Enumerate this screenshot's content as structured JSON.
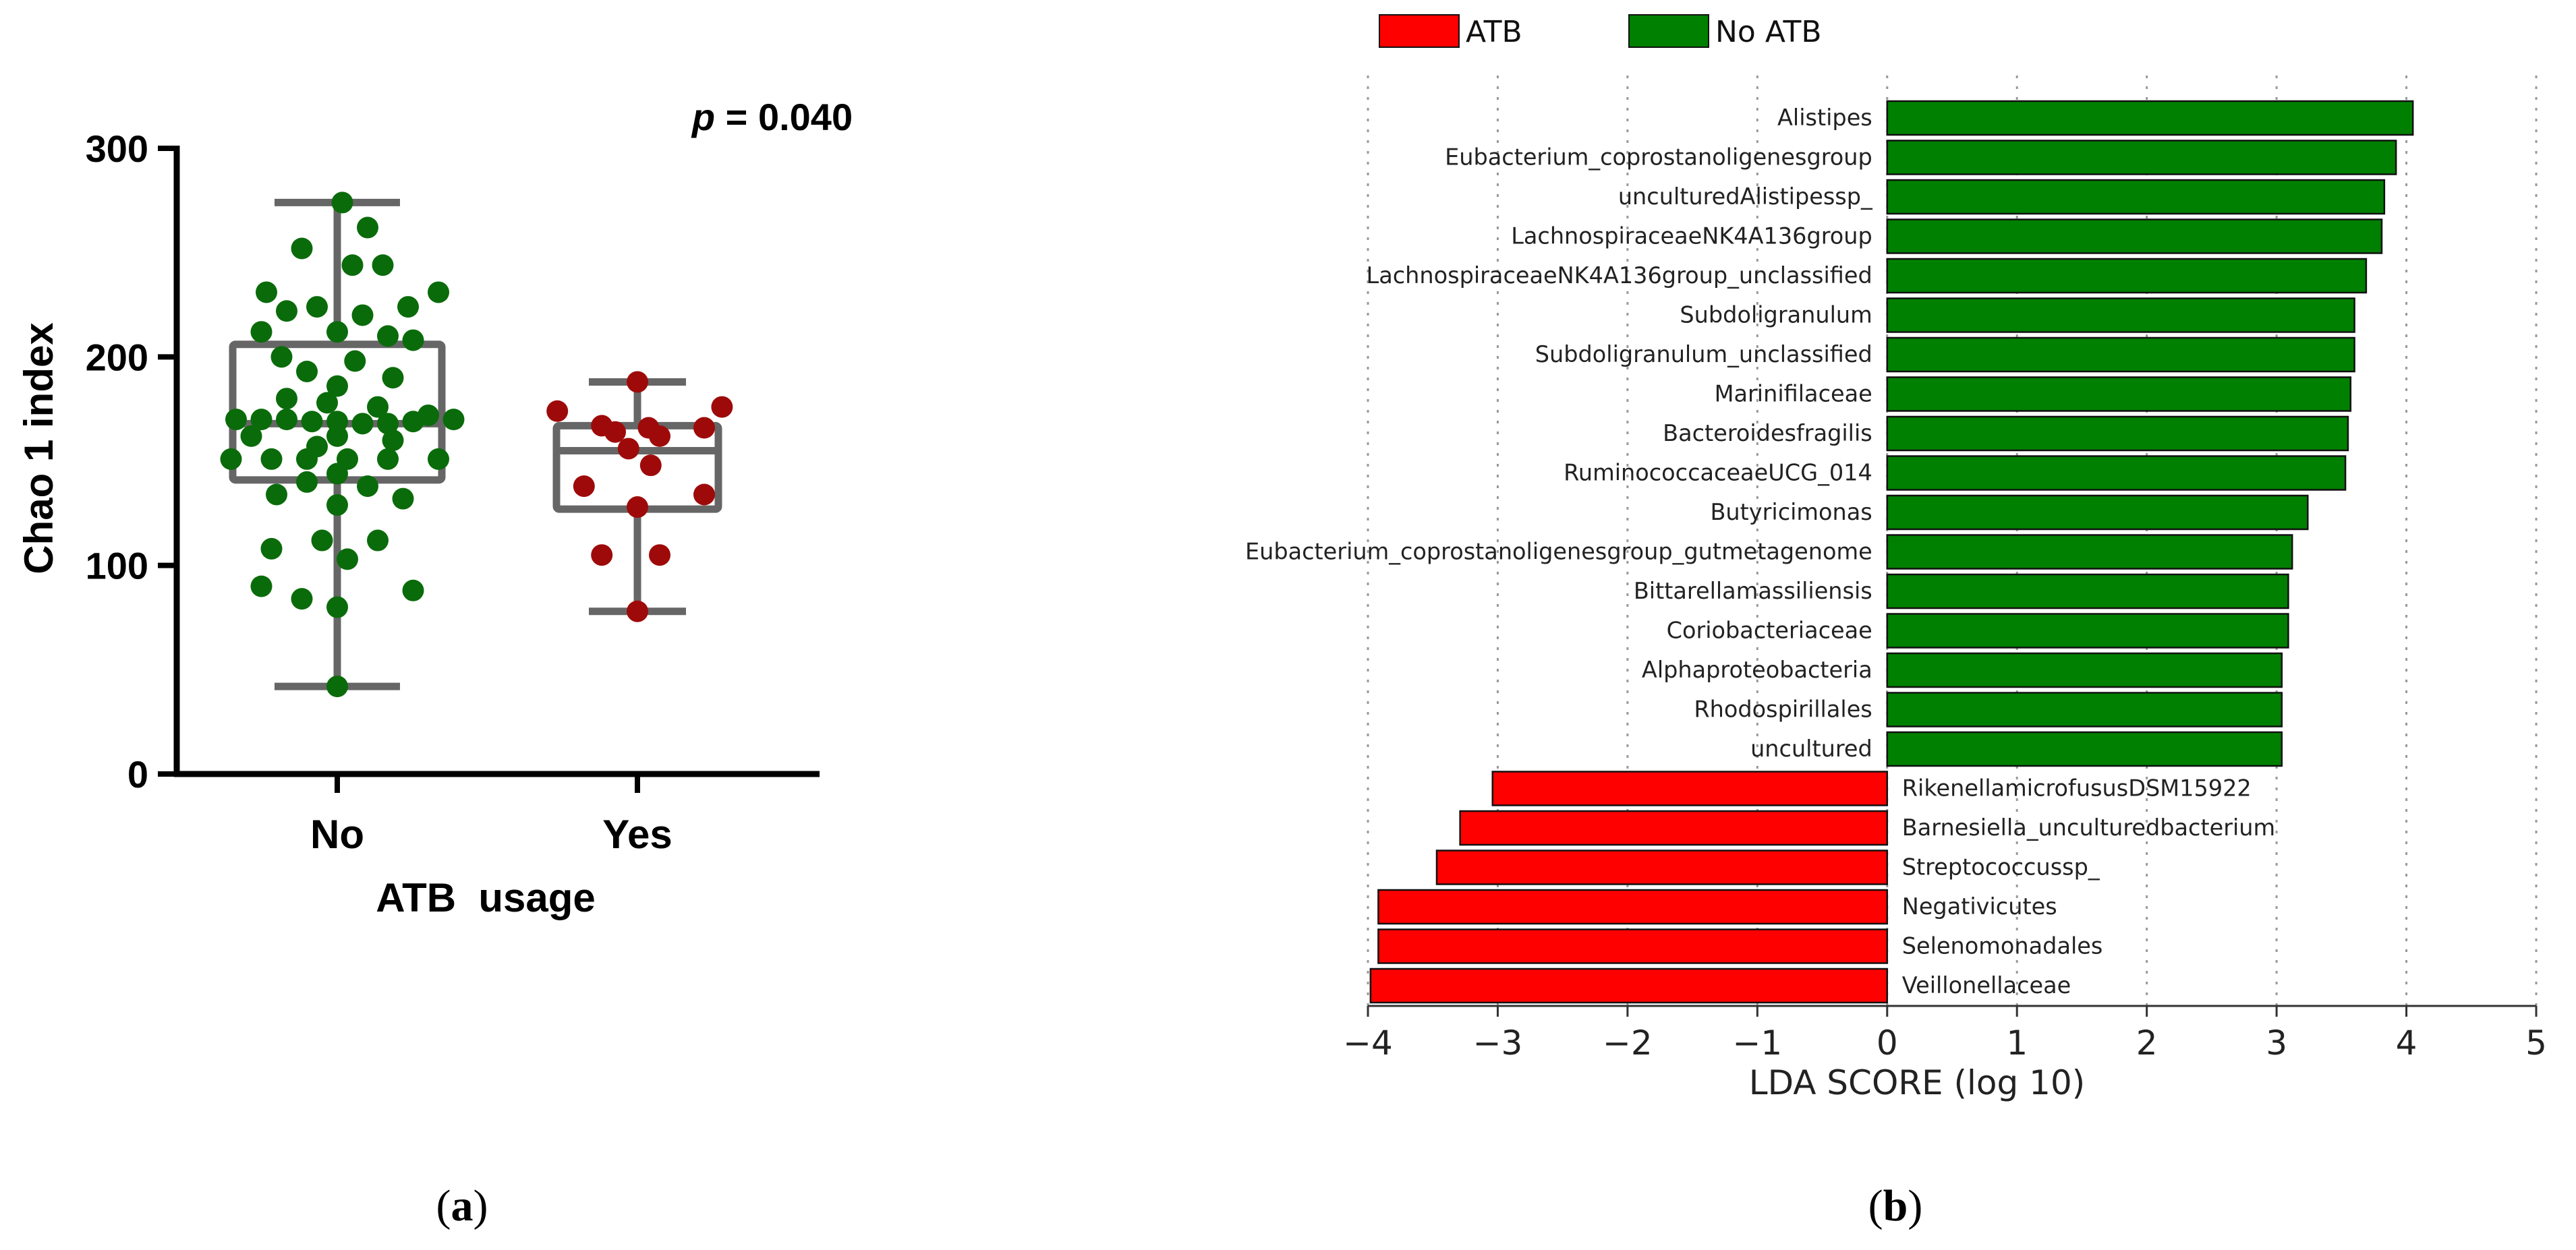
{
  "chart_data": [
    {
      "panel_label": "a",
      "type": "scatter",
      "subtype": "box-with-points",
      "title": "",
      "annotation": "p = 0.040",
      "annotation_italic": "p",
      "annotation_rest": " = 0.040",
      "xlabel": "ATB  usage",
      "ylabel": "Chao 1 index",
      "ylim": [
        0,
        300
      ],
      "yticks": [
        0,
        100,
        200,
        300
      ],
      "categories": [
        "No",
        "Yes"
      ],
      "colors": {
        "No": "#0a6b0a",
        "Yes": "#9e0a0a",
        "box": "#666666"
      },
      "boxes": [
        {
          "group": "No",
          "whisker_low": 42,
          "q1": 141,
          "median": 168,
          "q3": 206,
          "whisker_high": 274
        },
        {
          "group": "Yes",
          "whisker_low": 78,
          "q1": 127,
          "median": 155,
          "q3": 167,
          "whisker_high": 188
        }
      ],
      "points": {
        "No": [
          [
            0.02,
            274
          ],
          [
            0.12,
            262
          ],
          [
            -0.14,
            252
          ],
          [
            0.06,
            244
          ],
          [
            0.18,
            244
          ],
          [
            -0.28,
            231
          ],
          [
            0.4,
            231
          ],
          [
            -0.08,
            224
          ],
          [
            0.28,
            224
          ],
          [
            -0.2,
            222
          ],
          [
            0.1,
            220
          ],
          [
            -0.3,
            212
          ],
          [
            0.0,
            212
          ],
          [
            0.2,
            210
          ],
          [
            0.3,
            208
          ],
          [
            -0.22,
            200
          ],
          [
            0.07,
            198
          ],
          [
            -0.12,
            193
          ],
          [
            0.22,
            190
          ],
          [
            0.0,
            186
          ],
          [
            -0.2,
            180
          ],
          [
            -0.04,
            178
          ],
          [
            0.16,
            176
          ],
          [
            0.36,
            172
          ],
          [
            -0.4,
            170
          ],
          [
            -0.3,
            170
          ],
          [
            -0.2,
            170
          ],
          [
            -0.1,
            169
          ],
          [
            0.0,
            169
          ],
          [
            0.1,
            168
          ],
          [
            0.2,
            168
          ],
          [
            0.3,
            169
          ],
          [
            0.46,
            170
          ],
          [
            -0.34,
            162
          ],
          [
            0.0,
            162
          ],
          [
            0.22,
            160
          ],
          [
            -0.08,
            157
          ],
          [
            -0.42,
            151
          ],
          [
            -0.26,
            151
          ],
          [
            -0.12,
            151
          ],
          [
            0.04,
            151
          ],
          [
            0.2,
            151
          ],
          [
            0.4,
            151
          ],
          [
            0.0,
            144
          ],
          [
            -0.12,
            140
          ],
          [
            0.12,
            138
          ],
          [
            -0.24,
            134
          ],
          [
            0.26,
            132
          ],
          [
            0.0,
            129
          ],
          [
            -0.06,
            112
          ],
          [
            0.16,
            112
          ],
          [
            -0.26,
            108
          ],
          [
            0.04,
            103
          ],
          [
            -0.3,
            90
          ],
          [
            0.3,
            88
          ],
          [
            -0.14,
            84
          ],
          [
            0.0,
            80
          ],
          [
            0.0,
            42
          ]
        ],
        "Yes": [
          [
            0.0,
            188
          ],
          [
            -0.36,
            174
          ],
          [
            0.38,
            176
          ],
          [
            -0.16,
            167
          ],
          [
            0.05,
            166
          ],
          [
            -0.1,
            164
          ],
          [
            0.1,
            162
          ],
          [
            0.3,
            166
          ],
          [
            -0.04,
            156
          ],
          [
            0.06,
            148
          ],
          [
            -0.24,
            138
          ],
          [
            0.3,
            134
          ],
          [
            0.0,
            128
          ],
          [
            -0.16,
            105
          ],
          [
            0.1,
            105
          ],
          [
            0.0,
            78
          ]
        ]
      }
    },
    {
      "panel_label": "b",
      "type": "bar",
      "orientation": "horizontal",
      "title": "",
      "xlabel": "LDA SCORE (log 10)",
      "ylabel": "",
      "xlim": [
        -4,
        5
      ],
      "xticks": [
        "−4",
        "−3",
        "−2",
        "−1",
        "0",
        "1",
        "2",
        "3",
        "4",
        "5"
      ],
      "legend": [
        {
          "label": "ATB",
          "color": "#ff0000"
        },
        {
          "label": "No ATB",
          "color": "#008000"
        }
      ],
      "categories": [
        "Alistipes",
        "Eubacterium_coprostanoligenesgroup",
        "unculturedAlistipessp_",
        "LachnospiraceaeNK4A136group",
        "LachnospiraceaeNK4A136group_unclassified",
        "Subdoligranulum",
        "Subdoligranulum_unclassified",
        "Marinifilaceae",
        "Bacteroidesfragilis",
        "RuminococcaceaeUCG_014",
        "Butyricimonas",
        "Eubacterium_coprostanoligenesgroup_gutmetagenome",
        "Bittarellamassiliensis",
        "Coriobacteriaceae",
        "Alphaproteobacteria",
        "Rhodospirillales",
        "uncultured",
        "RikenellamicrofususDSM15922",
        "Barnesiella_unculturedbacterium",
        "Streptococcussp_",
        "Negativicutes",
        "Selenomonadales",
        "Veillonellaceae"
      ],
      "values": [
        4.05,
        3.92,
        3.83,
        3.81,
        3.69,
        3.6,
        3.6,
        3.57,
        3.55,
        3.53,
        3.24,
        3.12,
        3.09,
        3.09,
        3.04,
        3.04,
        3.04,
        -3.04,
        -3.29,
        -3.47,
        -3.92,
        -3.92,
        -3.98
      ],
      "groups": [
        "No ATB",
        "No ATB",
        "No ATB",
        "No ATB",
        "No ATB",
        "No ATB",
        "No ATB",
        "No ATB",
        "No ATB",
        "No ATB",
        "No ATB",
        "No ATB",
        "No ATB",
        "No ATB",
        "No ATB",
        "No ATB",
        "No ATB",
        "ATB",
        "ATB",
        "ATB",
        "ATB",
        "ATB",
        "ATB"
      ],
      "grid": true
    }
  ],
  "captions": {
    "a": {
      "open": "(",
      "letter": "a",
      "close": ")"
    },
    "b": {
      "open": "(",
      "letter": "b",
      "close": ")"
    }
  }
}
